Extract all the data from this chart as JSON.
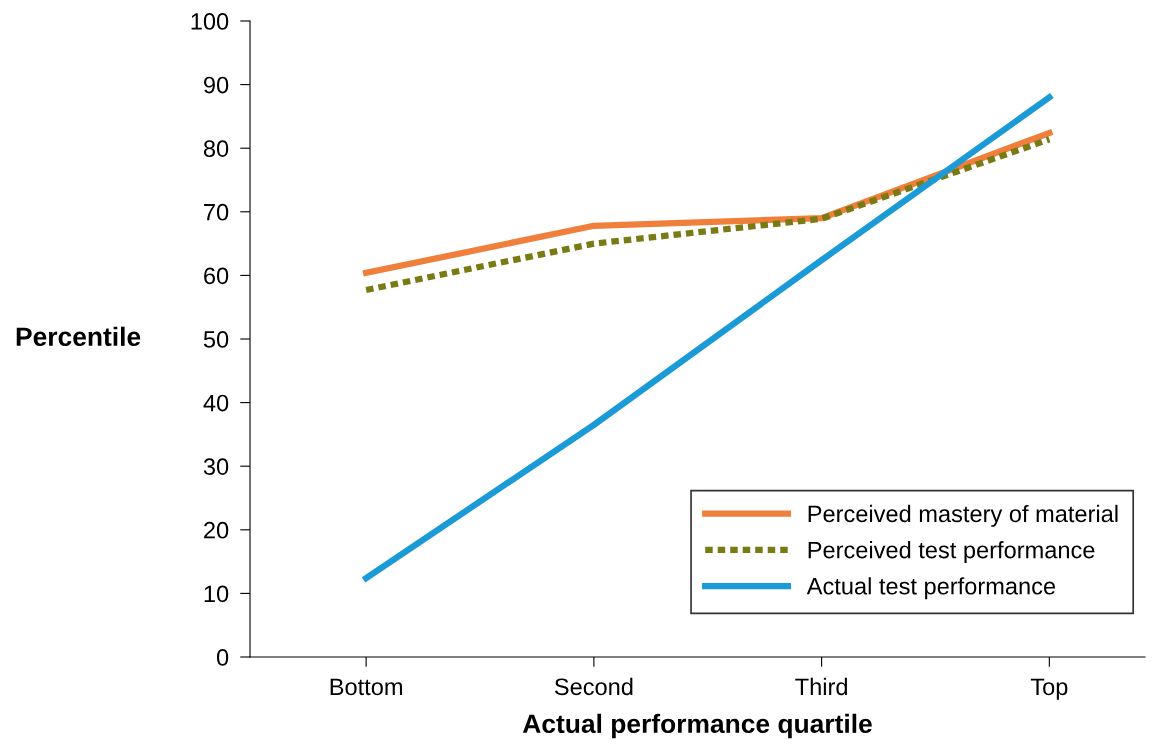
{
  "chart_data": {
    "type": "line",
    "xlabel": "Actual performance quartile",
    "ylabel": "Percentile",
    "categories": [
      "Bottom",
      "Second",
      "Third",
      "Top"
    ],
    "series": [
      {
        "name": "Perceived mastery of material",
        "color": "#f07f3c",
        "values": [
          60.4,
          67.8,
          69,
          82.4
        ],
        "line_style": "solid"
      },
      {
        "name": "Perceived test performance",
        "color": "#7a7a14",
        "values": [
          57.7,
          65,
          68.9,
          81.4
        ],
        "line_style": "dashed"
      },
      {
        "name": "Actual test performance",
        "color": "#1a9ad6",
        "values": [
          12.4,
          36.5,
          62.4,
          88
        ],
        "line_style": "solid"
      }
    ],
    "ylim": [
      0,
      100
    ],
    "yticks": [
      0,
      10,
      20,
      30,
      40,
      50,
      60,
      70,
      80,
      90,
      100
    ],
    "grid": false,
    "legend": "bottom right",
    "marker": "none"
  }
}
